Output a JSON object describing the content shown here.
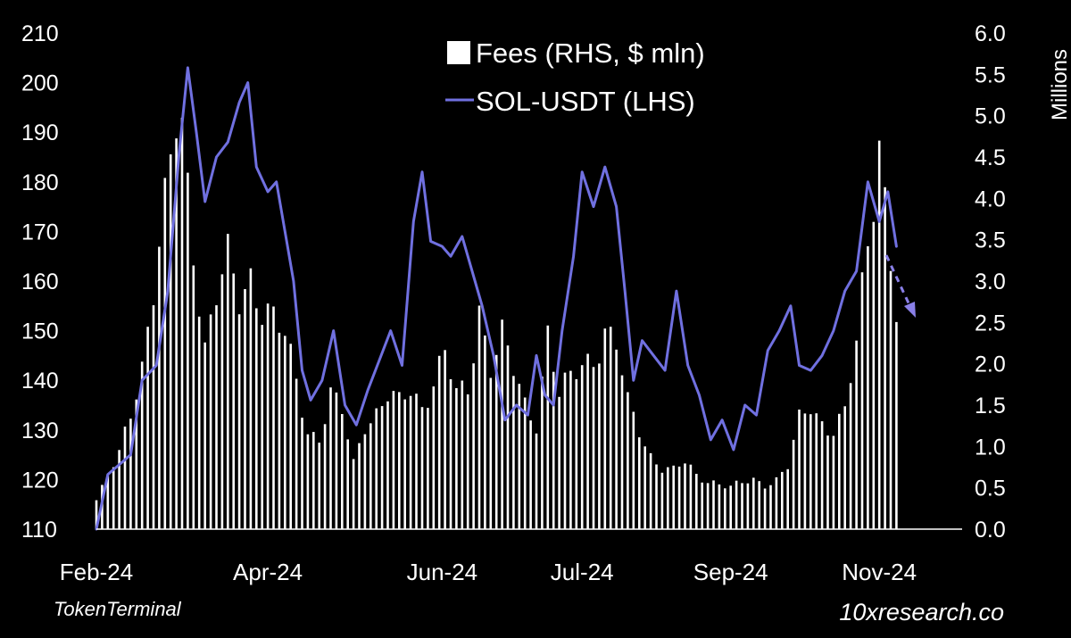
{
  "chart_data": {
    "type": "bar+line",
    "title": "",
    "source": "TokenTerminal",
    "brand": "10xresearch.co",
    "legend": {
      "placement": "top-center",
      "items": [
        {
          "label": "Fees (RHS, $ mln)",
          "kind": "bar",
          "color": "#ffffff"
        },
        {
          "label": "SOL-USDT (LHS)",
          "kind": "line",
          "color": "#7070e0"
        }
      ]
    },
    "y_left": {
      "min": 110,
      "max": 210,
      "ticks": [
        110,
        120,
        130,
        140,
        150,
        160,
        170,
        180,
        190,
        200,
        210
      ]
    },
    "y_right": {
      "min": 0,
      "max": 6,
      "unit_label": "Millions",
      "ticks": [
        "0.0",
        "0.5",
        "1.0",
        "1.5",
        "2.0",
        "2.5",
        "3.0",
        "3.5",
        "4.0",
        "4.5",
        "5.0",
        "5.5",
        "6.0"
      ]
    },
    "x_labels": [
      "Feb-24",
      "Apr-24",
      "Jun-24",
      "Jul-24",
      "Sep-24",
      "Nov-24"
    ],
    "x_domain": {
      "start": "2024-02-01",
      "end": "2024-11-30"
    },
    "x_ticks": [
      "2024-02-01",
      "2024-04-01",
      "2024-06-01",
      "2024-07-20",
      "2024-09-10",
      "2024-11-01"
    ],
    "colors": {
      "bars": "#ffffff",
      "line": "#7070e0",
      "background": "#000000",
      "axis": "#ffffff"
    },
    "annotation": {
      "type": "dashed-arrow",
      "direction": "down-right",
      "color": "#8a80e8"
    },
    "series": [
      {
        "name": "SOL-USDT (LHS)",
        "axis": "left",
        "points": [
          [
            "2024-02-01",
            110
          ],
          [
            "2024-02-05",
            121
          ],
          [
            "2024-02-09",
            123
          ],
          [
            "2024-02-13",
            125
          ],
          [
            "2024-02-17",
            140
          ],
          [
            "2024-02-22",
            143
          ],
          [
            "2024-02-26",
            158
          ],
          [
            "2024-03-01",
            186
          ],
          [
            "2024-03-04",
            203
          ],
          [
            "2024-03-07",
            190
          ],
          [
            "2024-03-10",
            176
          ],
          [
            "2024-03-14",
            185
          ],
          [
            "2024-03-18",
            188
          ],
          [
            "2024-03-22",
            196
          ],
          [
            "2024-03-25",
            200
          ],
          [
            "2024-03-28",
            183
          ],
          [
            "2024-04-01",
            178
          ],
          [
            "2024-04-04",
            180
          ],
          [
            "2024-04-07",
            170
          ],
          [
            "2024-04-10",
            160
          ],
          [
            "2024-04-13",
            142
          ],
          [
            "2024-04-16",
            136
          ],
          [
            "2024-04-20",
            140
          ],
          [
            "2024-04-24",
            150
          ],
          [
            "2024-04-28",
            135
          ],
          [
            "2024-05-02",
            131
          ],
          [
            "2024-05-06",
            138
          ],
          [
            "2024-05-10",
            144
          ],
          [
            "2024-05-14",
            150
          ],
          [
            "2024-05-18",
            143
          ],
          [
            "2024-05-22",
            172
          ],
          [
            "2024-05-25",
            182
          ],
          [
            "2024-05-28",
            168
          ],
          [
            "2024-06-01",
            167
          ],
          [
            "2024-06-04",
            165
          ],
          [
            "2024-06-08",
            169
          ],
          [
            "2024-06-11",
            163
          ],
          [
            "2024-06-15",
            155
          ],
          [
            "2024-06-19",
            145
          ],
          [
            "2024-06-23",
            132
          ],
          [
            "2024-06-27",
            135
          ],
          [
            "2024-07-01",
            133
          ],
          [
            "2024-07-04",
            145
          ],
          [
            "2024-07-07",
            137
          ],
          [
            "2024-07-10",
            135
          ],
          [
            "2024-07-13",
            150
          ],
          [
            "2024-07-17",
            165
          ],
          [
            "2024-07-20",
            182
          ],
          [
            "2024-07-24",
            175
          ],
          [
            "2024-07-28",
            183
          ],
          [
            "2024-08-01",
            175
          ],
          [
            "2024-08-04",
            158
          ],
          [
            "2024-08-07",
            140
          ],
          [
            "2024-08-10",
            148
          ],
          [
            "2024-08-14",
            145
          ],
          [
            "2024-08-18",
            142
          ],
          [
            "2024-08-22",
            158
          ],
          [
            "2024-08-26",
            143
          ],
          [
            "2024-08-30",
            137
          ],
          [
            "2024-09-03",
            128
          ],
          [
            "2024-09-07",
            132
          ],
          [
            "2024-09-11",
            126
          ],
          [
            "2024-09-15",
            135
          ],
          [
            "2024-09-19",
            133
          ],
          [
            "2024-09-23",
            146
          ],
          [
            "2024-09-27",
            150
          ],
          [
            "2024-10-01",
            155
          ],
          [
            "2024-10-04",
            143
          ],
          [
            "2024-10-08",
            142
          ],
          [
            "2024-10-12",
            145
          ],
          [
            "2024-10-16",
            150
          ],
          [
            "2024-10-20",
            158
          ],
          [
            "2024-10-24",
            162
          ],
          [
            "2024-10-28",
            180
          ],
          [
            "2024-11-01",
            172
          ],
          [
            "2024-11-04",
            178
          ],
          [
            "2024-11-07",
            167
          ]
        ]
      },
      {
        "name": "Fees (RHS, $ mln)",
        "axis": "right",
        "points": [
          [
            "2024-02-01",
            0.35
          ],
          [
            "2024-02-09",
            0.9
          ],
          [
            "2024-02-17",
            2.0
          ],
          [
            "2024-02-25",
            3.8
          ],
          [
            "2024-03-01",
            5.2
          ],
          [
            "2024-03-06",
            3.5
          ],
          [
            "2024-03-10",
            2.2
          ],
          [
            "2024-03-14",
            2.8
          ],
          [
            "2024-03-18",
            3.2
          ],
          [
            "2024-03-22",
            2.8
          ],
          [
            "2024-03-26",
            3.1
          ],
          [
            "2024-03-30",
            2.7
          ],
          [
            "2024-04-03",
            2.5
          ],
          [
            "2024-04-07",
            2.3
          ],
          [
            "2024-04-11",
            1.8
          ],
          [
            "2024-04-15",
            1.2
          ],
          [
            "2024-04-19",
            1.1
          ],
          [
            "2024-04-23",
            1.6
          ],
          [
            "2024-04-27",
            1.4
          ],
          [
            "2024-05-01",
            0.8
          ],
          [
            "2024-05-05",
            1.3
          ],
          [
            "2024-05-09",
            1.4
          ],
          [
            "2024-05-13",
            1.6
          ],
          [
            "2024-05-17",
            1.5
          ],
          [
            "2024-05-21",
            1.7
          ],
          [
            "2024-05-25",
            1.5
          ],
          [
            "2024-05-29",
            1.8
          ],
          [
            "2024-06-02",
            2.1
          ],
          [
            "2024-06-06",
            1.6
          ],
          [
            "2024-06-10",
            1.7
          ],
          [
            "2024-06-14",
            2.7
          ],
          [
            "2024-06-18",
            2.0
          ],
          [
            "2024-06-22",
            2.3
          ],
          [
            "2024-06-26",
            1.9
          ],
          [
            "2024-06-30",
            1.5
          ],
          [
            "2024-07-04",
            1.3
          ],
          [
            "2024-07-08",
            2.4
          ],
          [
            "2024-07-12",
            1.6
          ],
          [
            "2024-07-16",
            1.8
          ],
          [
            "2024-07-20",
            2.0
          ],
          [
            "2024-07-24",
            2.1
          ],
          [
            "2024-07-28",
            2.4
          ],
          [
            "2024-08-01",
            2.2
          ],
          [
            "2024-08-05",
            1.5
          ],
          [
            "2024-08-09",
            1.2
          ],
          [
            "2024-08-13",
            0.9
          ],
          [
            "2024-08-17",
            0.75
          ],
          [
            "2024-08-21",
            0.7
          ],
          [
            "2024-08-25",
            0.8
          ],
          [
            "2024-08-29",
            0.65
          ],
          [
            "2024-09-02",
            0.6
          ],
          [
            "2024-09-06",
            0.55
          ],
          [
            "2024-09-10",
            0.5
          ],
          [
            "2024-09-14",
            0.55
          ],
          [
            "2024-09-18",
            0.6
          ],
          [
            "2024-09-22",
            0.55
          ],
          [
            "2024-09-26",
            0.6
          ],
          [
            "2024-09-30",
            0.75
          ],
          [
            "2024-10-04",
            1.3
          ],
          [
            "2024-10-08",
            1.5
          ],
          [
            "2024-10-12",
            1.3
          ],
          [
            "2024-10-16",
            1.2
          ],
          [
            "2024-10-20",
            1.4
          ],
          [
            "2024-10-24",
            2.2
          ],
          [
            "2024-10-28",
            3.5
          ],
          [
            "2024-11-01",
            4.8
          ],
          [
            "2024-11-04",
            3.7
          ],
          [
            "2024-11-07",
            2.6
          ]
        ]
      }
    ]
  }
}
